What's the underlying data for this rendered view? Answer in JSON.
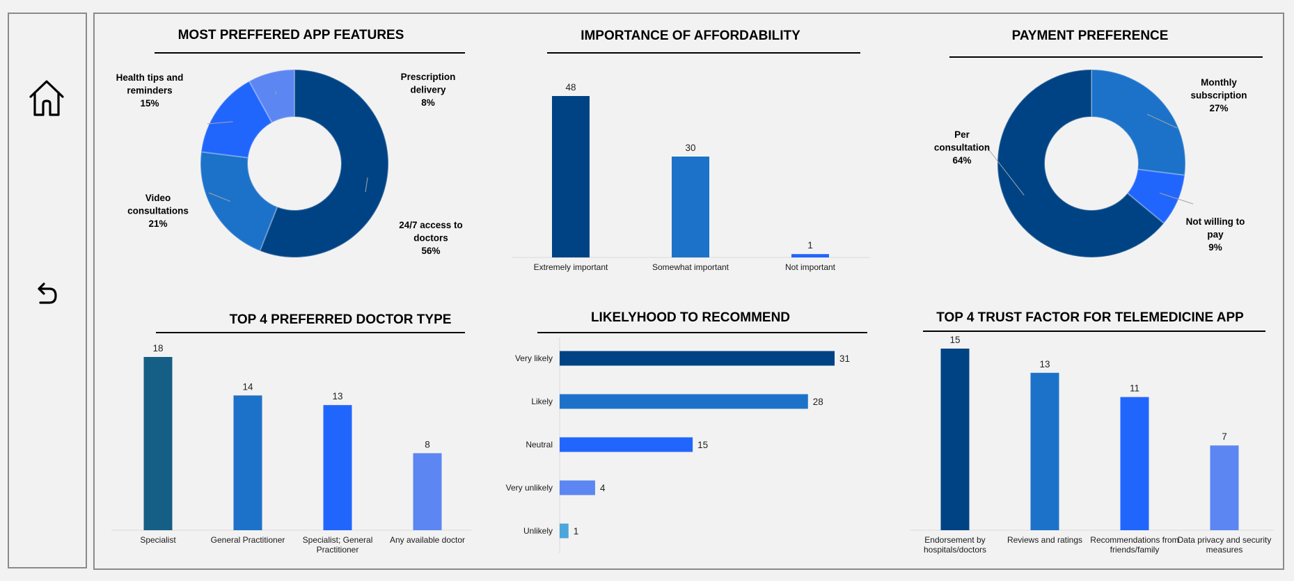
{
  "nav": {
    "home_icon": "home-icon",
    "back_icon": "undo-arrow-icon"
  },
  "colors": {
    "dark": "#004385",
    "mid": "#1c72c9",
    "bright": "#2166fc",
    "light": "#5c86f2",
    "teal": "#155f86",
    "sky": "#4aa6dc"
  },
  "panels": {
    "features": {
      "title": "MOST PREFFERED APP FEATURES"
    },
    "affordability": {
      "title": "IMPORTANCE OF AFFORDABILITY"
    },
    "payment": {
      "title": "PAYMENT PREFERENCE"
    },
    "doctor": {
      "title": "TOP 4 PREFERRED DOCTOR TYPE"
    },
    "recommend": {
      "title": "LIKELYHOOD TO RECOMMEND"
    },
    "trust": {
      "title": "TOP 4 TRUST FACTOR FOR TELEMEDICINE APP"
    }
  },
  "chart_data": [
    {
      "id": "features",
      "type": "pie",
      "title": "MOST PREFFERED APP FEATURES",
      "slices": [
        {
          "label": "24/7 access to doctors",
          "value": 56,
          "display": [
            "24/7 access to",
            "doctors",
            "56%"
          ],
          "color": "#004385"
        },
        {
          "label": "Video consultations",
          "value": 21,
          "display": [
            "Video",
            "consultations",
            "21%"
          ],
          "color": "#1c72c9"
        },
        {
          "label": "Health tips and reminders",
          "value": 15,
          "display": [
            "Health tips and",
            "reminders",
            "15%"
          ],
          "color": "#2166fc"
        },
        {
          "label": "Prescription delivery",
          "value": 8,
          "display": [
            "Prescription",
            "delivery",
            "8%"
          ],
          "color": "#5c86f2"
        }
      ]
    },
    {
      "id": "affordability",
      "type": "bar",
      "title": "IMPORTANCE OF AFFORDABILITY",
      "categories": [
        "Extremely important",
        "Somewhat important",
        "Not important"
      ],
      "values": [
        48,
        30,
        1
      ],
      "colors": [
        "#004385",
        "#1c72c9",
        "#2166fc"
      ]
    },
    {
      "id": "payment",
      "type": "pie",
      "title": "PAYMENT PREFERENCE",
      "slices": [
        {
          "label": "Monthly subscription",
          "value": 27,
          "display": [
            "Monthly",
            "subscription",
            "27%"
          ],
          "color": "#1c72c9"
        },
        {
          "label": "Not willing to pay",
          "value": 9,
          "display": [
            "Not willing to",
            "pay",
            "9%"
          ],
          "color": "#2166fc"
        },
        {
          "label": "Per consultation",
          "value": 64,
          "display": [
            "Per",
            "consultation",
            "64%"
          ],
          "color": "#004385"
        }
      ]
    },
    {
      "id": "doctor",
      "type": "bar",
      "title": "TOP 4 PREFERRED DOCTOR TYPE",
      "categories": [
        [
          "Specialist"
        ],
        [
          "General Practitioner"
        ],
        [
          "Specialist; General",
          "Practitioner"
        ],
        [
          "Any available doctor"
        ]
      ],
      "values": [
        18,
        14,
        13,
        8
      ],
      "colors": [
        "#155f86",
        "#1c72c9",
        "#2166fc",
        "#5c86f2"
      ]
    },
    {
      "id": "recommend",
      "type": "bar",
      "orientation": "horizontal",
      "title": "LIKELYHOOD TO RECOMMEND",
      "categories": [
        "Very likely",
        "Likely",
        "Neutral",
        "Very unlikely",
        "Unlikely"
      ],
      "values": [
        31,
        28,
        15,
        4,
        1
      ],
      "colors": [
        "#004385",
        "#1c72c9",
        "#2166fc",
        "#5c86f2",
        "#4aa6dc"
      ]
    },
    {
      "id": "trust",
      "type": "bar",
      "title": "TOP 4 TRUST FACTOR FOR TELEMEDICINE APP",
      "categories": [
        [
          "Endorsement by",
          "hospitals/doctors"
        ],
        [
          "Reviews and ratings"
        ],
        [
          "Recommendations from",
          "friends/family"
        ],
        [
          "Data privacy and security",
          "measures"
        ]
      ],
      "values": [
        15,
        13,
        11,
        7
      ],
      "colors": [
        "#004385",
        "#1c72c9",
        "#2166fc",
        "#5c86f2"
      ]
    }
  ]
}
